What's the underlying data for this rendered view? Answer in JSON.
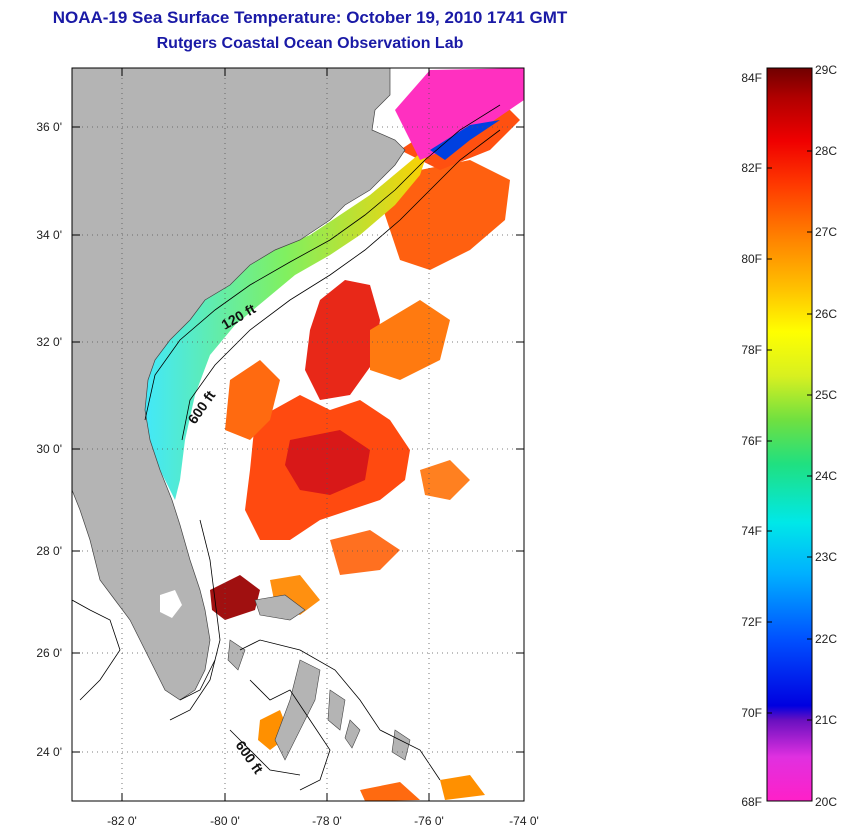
{
  "title": "NOAA-19 Sea Surface Temperature:  October 19, 2010 1741 GMT",
  "subtitle": "Rutgers Coastal Ocean Observation Lab",
  "map": {
    "lat_labels": [
      "36 0'",
      "34 0'",
      "32 0'",
      "30 0'",
      "28 0'",
      "26 0'",
      "24 0'"
    ],
    "lon_labels": [
      "-82 0'",
      "-80 0'",
      "-78 0'",
      "-76 0'",
      "-74 0'"
    ],
    "isobath_labels": [
      "120 ft",
      "600 ft",
      "600 ft"
    ]
  },
  "colorbar": {
    "fahrenheit_labels": [
      "84F",
      "82F",
      "80F",
      "78F",
      "76F",
      "74F",
      "72F",
      "70F",
      "68F"
    ],
    "celsius_labels": [
      "29C",
      "28C",
      "27C",
      "26C",
      "25C",
      "24C",
      "23C",
      "22C",
      "21C",
      "20C"
    ]
  },
  "colors": {
    "land": "#b4b4b4",
    "title": "#1a1aa6",
    "grid": "#555555"
  }
}
